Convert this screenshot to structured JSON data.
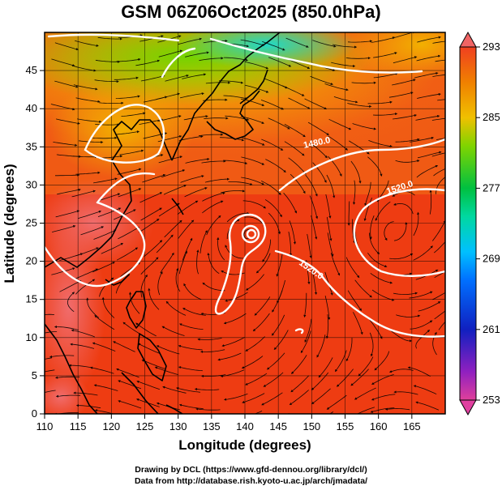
{
  "title": "GSM 06Z06Oct2025 (850.0hPa)",
  "chart_data": {
    "type": "heatmap",
    "xlabel": "Longitude (degrees)",
    "ylabel": "Latitude (degrees)",
    "xlim": [
      110,
      170
    ],
    "ylim": [
      0,
      50
    ],
    "x_ticks": [
      "110",
      "115",
      "120",
      "125",
      "130",
      "135",
      "140",
      "145",
      "150",
      "155",
      "160",
      "165"
    ],
    "y_ticks": [
      "0",
      "5",
      "10",
      "15",
      "20",
      "25",
      "30",
      "35",
      "40",
      "45"
    ],
    "colorbar": {
      "min": 253,
      "max": 293,
      "ticks": [
        "253",
        "261",
        "269",
        "277",
        "285",
        "293"
      ]
    },
    "contour_labels": [
      "1480.0",
      "1520.0",
      "1520.0"
    ],
    "grid": true,
    "fields": [
      "temperature (shaded)",
      "streamlines (wind)",
      "geopotential height (white contours)",
      "coastlines"
    ]
  },
  "credits": {
    "line1": "Drawing by DCL (https://www.gfd-dennou.org/library/dcl/)",
    "line2": "Data from http://database.rish.kyoto-u.ac.jp/arch/jmadata/"
  }
}
